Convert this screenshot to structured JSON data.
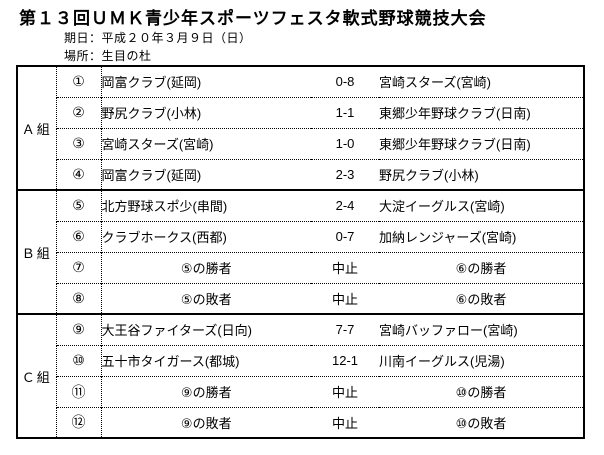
{
  "header": {
    "title": "第１３回ＵＭＫ青少年スポーツフェスタ軟式野球競技大会",
    "date_line": "期日：平成２０年３月９日（日）",
    "place_line": "場所：生目の杜"
  },
  "table": {
    "groups": [
      {
        "name": "Ａ組",
        "rows": [
          {
            "no": "①",
            "left": "岡富クラブ(延岡)",
            "score": "0-8",
            "right": "宮崎スターズ(宮崎)"
          },
          {
            "no": "②",
            "left": "野尻クラブ(小林)",
            "score": "1-1",
            "right": "東郷少年野球クラブ(日南)"
          },
          {
            "no": "③",
            "left": "宮崎スターズ(宮崎)",
            "score": "1-0",
            "right": "東郷少年野球クラブ(日南)"
          },
          {
            "no": "④",
            "left": "岡富クラブ(延岡)",
            "score": "2-3",
            "right": "野尻クラブ(小林)"
          }
        ]
      },
      {
        "name": "Ｂ組",
        "rows": [
          {
            "no": "⑤",
            "left": "北方野球スポ少(串間)",
            "score": "2-4",
            "right": "大淀イーグルス(宮崎)"
          },
          {
            "no": "⑥",
            "left": "クラブホークス(西都)",
            "score": "0-7",
            "right": "加納レンジャーズ(宮崎)"
          },
          {
            "no": "⑦",
            "left": "⑤の勝者",
            "score": "中止",
            "right": "⑥の勝者"
          },
          {
            "no": "⑧",
            "left": "⑤の敗者",
            "score": "中止",
            "right": "⑥の敗者"
          }
        ]
      },
      {
        "name": "Ｃ組",
        "rows": [
          {
            "no": "⑨",
            "left": "大王谷ファイターズ(日向)",
            "score": "7-7",
            "right": "宮崎バッファロー(宮崎)"
          },
          {
            "no": "⑩",
            "left": "五十市タイガース(都城)",
            "score": "12-1",
            "right": "川南イーグルス(児湯)"
          },
          {
            "no": "⑪",
            "left": "⑨の勝者",
            "score": "中止",
            "right": "⑩の勝者"
          },
          {
            "no": "⑫",
            "left": "⑨の敗者",
            "score": "中止",
            "right": "⑩の敗者"
          }
        ]
      }
    ]
  }
}
